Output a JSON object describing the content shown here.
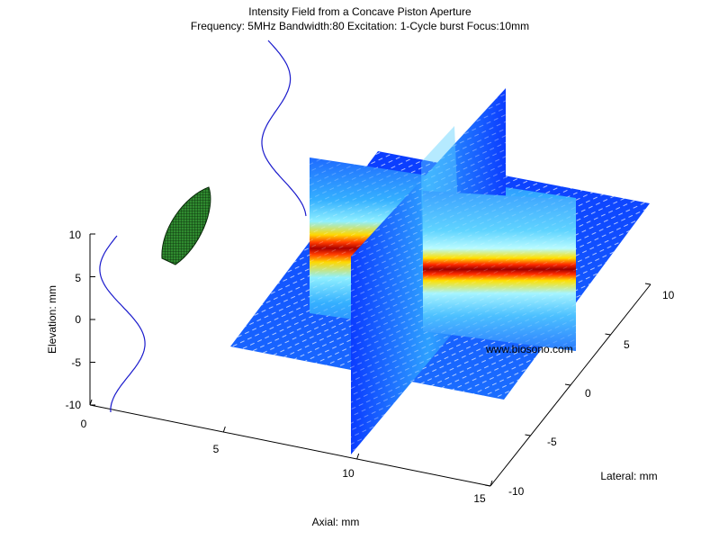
{
  "chart_data": {
    "type": "surface-3d",
    "title": "Intensity Field from a Concave Piston Aperture",
    "subtitle": "Frequency: 5MHz  Bandwidth:80 Excitation: 1-Cycle burst Focus:10mm",
    "xlabel": "Axial: mm",
    "ylabel": "Lateral: mm",
    "zlabel": "Elevation: mm",
    "xlim": [
      0,
      15
    ],
    "ylim": [
      -10,
      10
    ],
    "zlim": [
      -10,
      10
    ],
    "xticks": [
      "0",
      "5",
      "10",
      "15"
    ],
    "yticks": [
      "-10",
      "-5",
      "0",
      "5",
      "10"
    ],
    "zticks": [
      "10",
      "5",
      "0",
      "-5",
      "-10"
    ],
    "colormap": "jet",
    "focus_mm": 10,
    "watermark": "www.biosono.com",
    "colors": {
      "waveform": "#1a1acc",
      "aperture": "#2e8b2e",
      "axis": "#000000"
    }
  }
}
